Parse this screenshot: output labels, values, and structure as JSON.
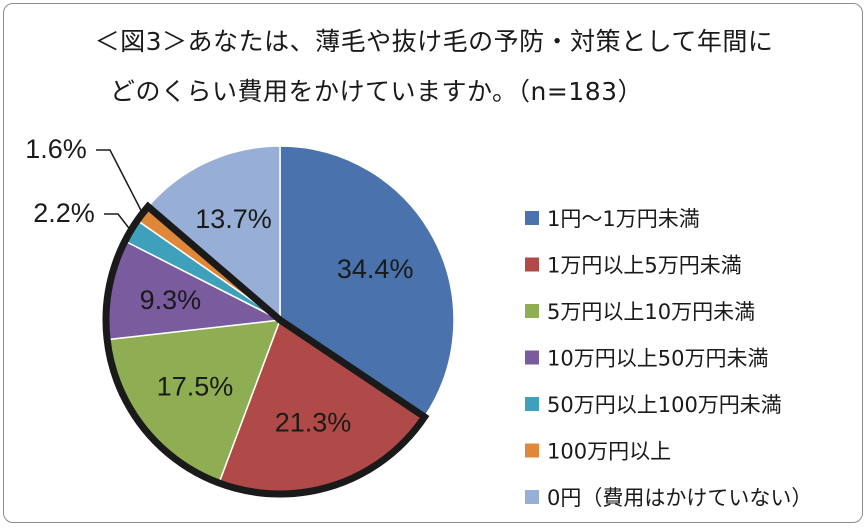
{
  "chart_data": {
    "type": "pie",
    "title_line1": "＜図3＞あなたは、薄毛や抜け毛の予防・対策として年間に",
    "title_line2": "どのくらい費用をかけていますか。（n=183）",
    "slices": [
      {
        "label": "1円～1万円未満",
        "value": 34.4,
        "text": "34.4%",
        "color": "#4a73ad"
      },
      {
        "label": "1万円以上5万円未満",
        "value": 21.3,
        "text": "21.3%",
        "color": "#b04a48"
      },
      {
        "label": "5万円以上10万円未満",
        "value": 17.5,
        "text": "17.5%",
        "color": "#8fad52"
      },
      {
        "label": "10万円以上50万円未満",
        "value": 9.3,
        "text": "9.3%",
        "color": "#7a5c9e"
      },
      {
        "label": "50万円以上100万円未満",
        "value": 2.2,
        "text": "2.2%",
        "color": "#3ea0bb"
      },
      {
        "label": "100万円以上",
        "value": 1.6,
        "text": "1.6%",
        "color": "#e0883a"
      },
      {
        "label": "0円（費用はかけていない）",
        "value": 13.7,
        "text": "13.7%",
        "color": "#97aed6"
      }
    ],
    "legend_position": "right"
  }
}
